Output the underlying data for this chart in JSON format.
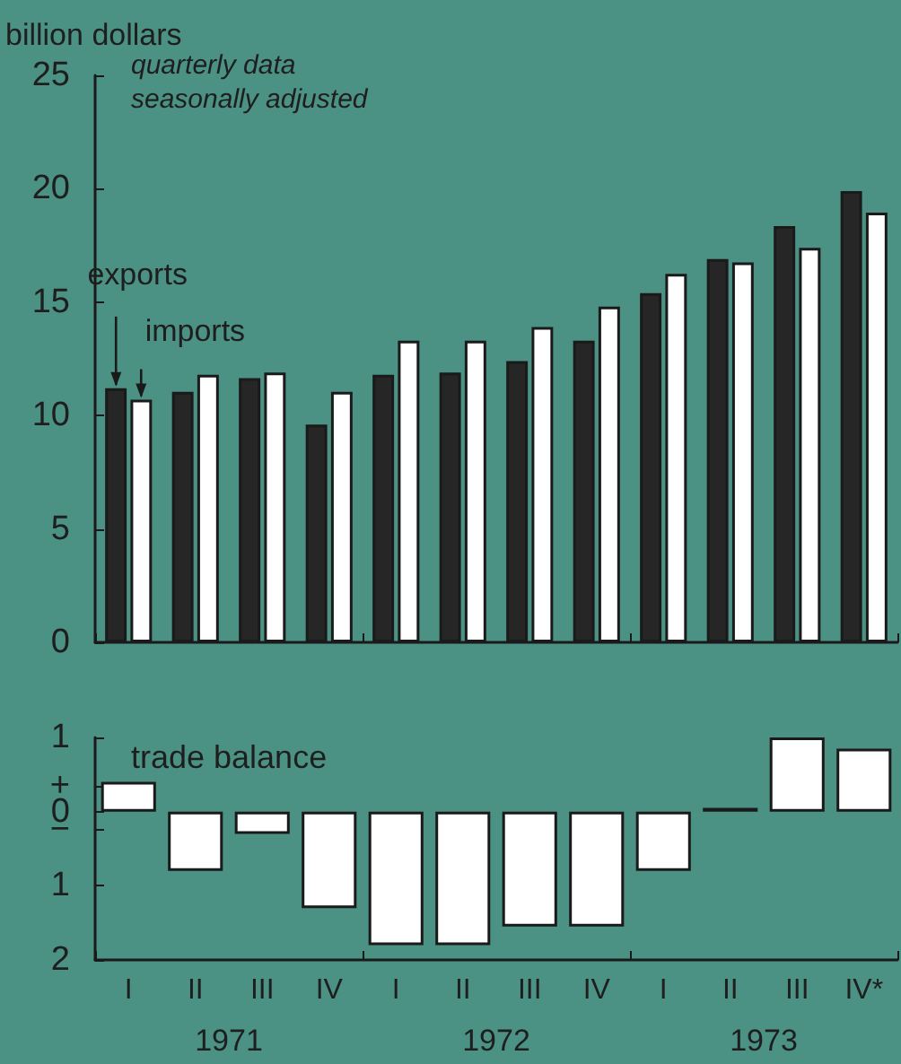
{
  "chart_data": [
    {
      "type": "bar",
      "ylabel": "billion dollars",
      "categories": [
        null,
        null,
        null,
        null,
        null,
        null,
        null,
        null,
        null,
        null,
        null,
        null
      ],
      "series": [
        {
          "name": "exports",
          "color": "#262626",
          "values": [
            11.2,
            11.05,
            11.65,
            9.6,
            11.8,
            11.9,
            12.4,
            13.3,
            15.4,
            16.9,
            18.35,
            19.9
          ]
        },
        {
          "name": "imports",
          "color": "#ffffff",
          "values": [
            10.7,
            11.8,
            11.9,
            11.05,
            13.3,
            13.3,
            13.9,
            14.8,
            16.25,
            16.75,
            17.4,
            18.95
          ]
        }
      ],
      "ylim": [
        0,
        25
      ],
      "yticks": [
        0,
        5,
        10,
        15,
        20,
        25
      ],
      "grid": false,
      "legend": false,
      "tick_labels": "y",
      "annotations": [
        "quarterly data\nseasonally adjusted"
      ]
    },
    {
      "type": "bar",
      "title": "trade balance",
      "categories": [
        "I",
        "II",
        "III",
        "IV",
        "I",
        "II",
        "III",
        "IV",
        "I",
        "II",
        "III",
        "IV*"
      ],
      "values": [
        0.4,
        -0.8,
        -0.3,
        -1.3,
        -1.8,
        -1.8,
        -1.55,
        -1.55,
        -0.8,
        0.05,
        1.0,
        0.85
      ],
      "color": "#ffffff",
      "ylim": [
        -2,
        1
      ],
      "yticks": [
        1,
        {
          "value": 0.35,
          "label": "+"
        },
        0,
        {
          "value": -0.25,
          "label": "−"
        },
        {
          "value": -1,
          "label": "1"
        },
        {
          "value": -2,
          "label": "2"
        }
      ],
      "grid": false,
      "legend": false,
      "annotations": [
        "1971",
        "1972",
        "1973"
      ]
    }
  ]
}
